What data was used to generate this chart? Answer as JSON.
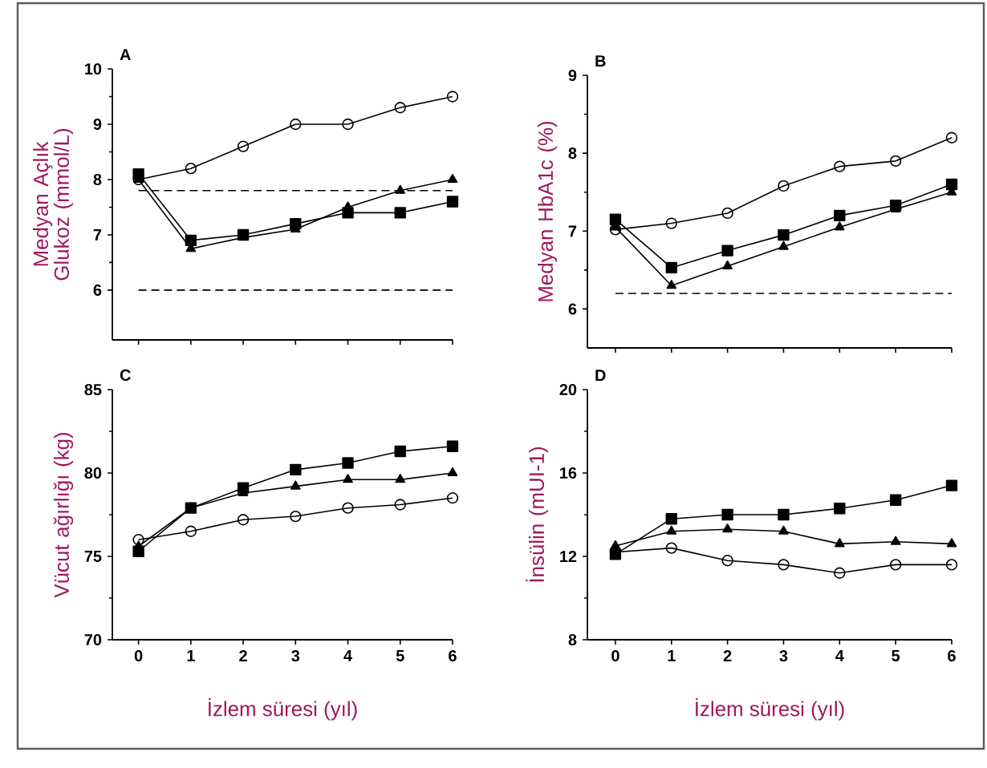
{
  "chart_data": [
    {
      "type": "line",
      "title": "A",
      "ylabel": "Medyan Açlık Glukoz (mmol/L)",
      "x": [
        0,
        1,
        2,
        3,
        4,
        5,
        6
      ],
      "xlim": [
        -0.5,
        6
      ],
      "xticks": [
        0,
        1,
        2,
        3,
        4,
        5,
        6
      ],
      "ylim": [
        5.1,
        10
      ],
      "yticks": [
        6,
        7,
        8,
        9,
        10
      ],
      "tick_labels": "y",
      "line_style": "solid",
      "ref_lines": [
        {
          "axis": "y",
          "value": 7.8,
          "line_style": "dashed",
          "color": "#000000"
        },
        {
          "axis": "y",
          "value": 6,
          "line_style": "dashed",
          "color": "#000000"
        }
      ],
      "series": [
        {
          "color": "#000000",
          "marker": "circle",
          "values": [
            8.0,
            8.2,
            8.6,
            9.0,
            9.0,
            9.3,
            9.5
          ]
        },
        {
          "color": "#000000",
          "marker": "square",
          "values": [
            8.1,
            6.9,
            7.0,
            7.2,
            7.4,
            7.4,
            7.6
          ]
        },
        {
          "color": "#000000",
          "marker": "triangle",
          "values": [
            8.0,
            6.75,
            6.95,
            7.1,
            7.5,
            7.8,
            8.0
          ]
        }
      ]
    },
    {
      "type": "line",
      "title": "B",
      "ylabel": "Medyan HbA1c (%)",
      "x": [
        0,
        1,
        2,
        3,
        4,
        5,
        6
      ],
      "xlim": [
        -0.5,
        6
      ],
      "xticks": [
        0,
        1,
        2,
        3,
        4,
        5,
        6
      ],
      "ylim": [
        5.5,
        9
      ],
      "yticks": [
        6,
        7,
        8,
        9
      ],
      "tick_labels": "y",
      "line_style": "solid",
      "ref_lines": [
        {
          "axis": "y",
          "value": 6.2,
          "line_style": "dashed",
          "color": "#000000"
        }
      ],
      "series": [
        {
          "color": "#000000",
          "marker": "circle",
          "values": [
            7.02,
            7.1,
            7.23,
            7.58,
            7.83,
            7.9,
            8.2
          ]
        },
        {
          "color": "#000000",
          "marker": "square",
          "values": [
            7.15,
            6.53,
            6.75,
            6.95,
            7.2,
            7.33,
            7.6
          ]
        },
        {
          "color": "#000000",
          "marker": "triangle",
          "values": [
            7.05,
            6.3,
            6.55,
            6.8,
            7.05,
            7.28,
            7.5
          ]
        }
      ]
    },
    {
      "type": "line",
      "title": "C",
      "xlabel": "İzlem süresi (yıl)",
      "ylabel": "Vücut ağırlığı (kg)",
      "x": [
        0,
        1,
        2,
        3,
        4,
        5,
        6
      ],
      "xlim": [
        -0.5,
        6
      ],
      "xticks": [
        0,
        1,
        2,
        3,
        4,
        5,
        6
      ],
      "ylim": [
        70,
        85
      ],
      "yticks": [
        70,
        75,
        80,
        85
      ],
      "line_style": "solid",
      "series": [
        {
          "color": "#000000",
          "marker": "circle",
          "values": [
            76.0,
            76.5,
            77.2,
            77.4,
            77.9,
            78.1,
            78.5
          ]
        },
        {
          "color": "#000000",
          "marker": "square",
          "values": [
            75.3,
            77.9,
            79.1,
            80.2,
            80.6,
            81.3,
            81.6
          ]
        },
        {
          "color": "#000000",
          "marker": "triangle",
          "values": [
            75.6,
            77.9,
            78.8,
            79.2,
            79.6,
            79.6,
            80.0
          ]
        }
      ]
    },
    {
      "type": "line",
      "title": "D",
      "xlabel": "İzlem süresi (yıl)",
      "ylabel": "İnsülin (mUI-1)",
      "x": [
        0,
        1,
        2,
        3,
        4,
        5,
        6
      ],
      "xlim": [
        -0.5,
        6
      ],
      "xticks": [
        0,
        1,
        2,
        3,
        4,
        5,
        6
      ],
      "ylim": [
        8,
        20
      ],
      "yticks": [
        8,
        12,
        16,
        20
      ],
      "line_style": "solid",
      "series": [
        {
          "color": "#000000",
          "marker": "circle",
          "values": [
            12.2,
            12.4,
            11.8,
            11.6,
            11.2,
            11.6,
            11.6
          ]
        },
        {
          "color": "#000000",
          "marker": "square",
          "values": [
            12.1,
            13.8,
            14.0,
            14.0,
            14.3,
            14.7,
            15.4
          ]
        },
        {
          "color": "#000000",
          "marker": "triangle",
          "values": [
            12.5,
            13.2,
            13.3,
            13.2,
            12.6,
            12.7,
            12.6
          ]
        }
      ]
    }
  ]
}
